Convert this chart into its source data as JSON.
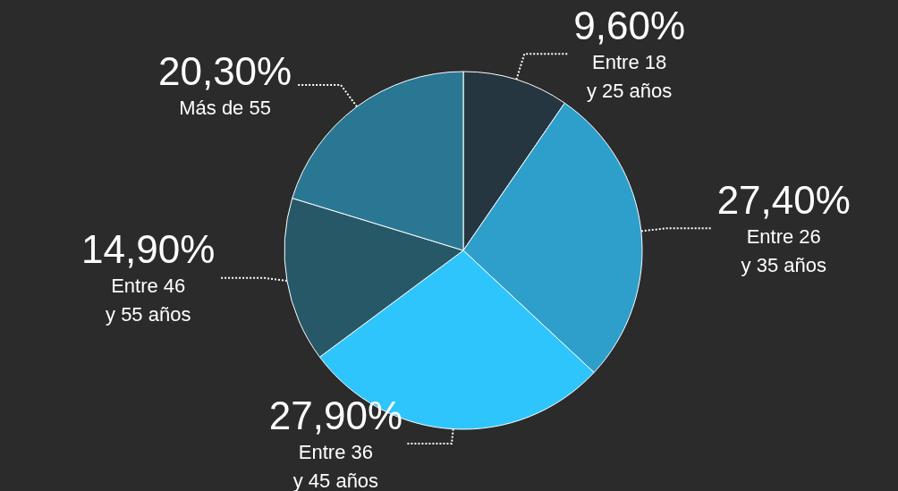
{
  "chart_data": {
    "type": "pie",
    "categories": [
      "Entre 18\ny 25 años",
      "Entre 26\ny 35 años",
      "Entre 36\ny 45 años",
      "Entre 46\ny 55 años",
      "Más de 55"
    ],
    "values": [
      9.6,
      27.4,
      27.9,
      14.9,
      20.3
    ],
    "value_labels": [
      "9,60%",
      "27,40%",
      "27,90%",
      "14,90%",
      "20,30%"
    ],
    "colors": [
      "#263640",
      "#2e9fcb",
      "#2ec5fc",
      "#275868",
      "#2a7794"
    ],
    "legend": false
  }
}
